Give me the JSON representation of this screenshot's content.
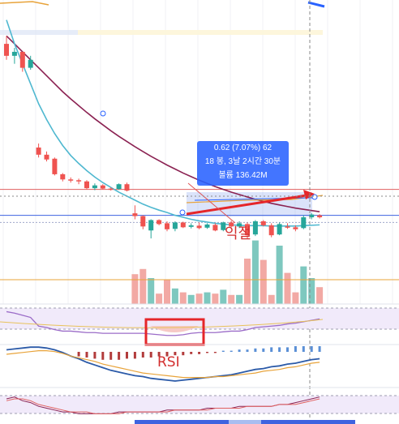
{
  "colors": {
    "up": "#26a69a",
    "down": "#ef5350",
    "up_vol": "#7ec8bf",
    "down_vol": "#f2a9a4",
    "ma_short": "#4fb8d0",
    "ma_long": "#8b2252",
    "ma_mid": "#e8a33a",
    "hline_red": "#e06060",
    "hline_blue": "#3e63e0",
    "accent_blue": "#2962ff",
    "annotation_red": "#d32f2f"
  },
  "measure_tooltip": {
    "line1": "0.62 (7.07%) 62",
    "line2": "18 봉, 3날 2시간 30분",
    "line3": "볼륨 136.42M"
  },
  "annotations": {
    "trend_label": "익절",
    "oscillator_label": "RSI"
  },
  "chart_data": {
    "type": "candlestick",
    "candles": [
      {
        "o": 5.6,
        "h": 5.8,
        "l": 5.2,
        "c": 5.3
      },
      {
        "o": 5.3,
        "h": 5.5,
        "l": 5.1,
        "c": 5.4
      },
      {
        "o": 5.4,
        "h": 5.4,
        "l": 4.9,
        "c": 5.0
      },
      {
        "o": 5.0,
        "h": 5.3,
        "l": 4.95,
        "c": 5.2
      },
      {
        "o": 3.0,
        "h": 3.1,
        "l": 2.75,
        "c": 2.82
      },
      {
        "o": 2.82,
        "h": 2.9,
        "l": 2.65,
        "c": 2.7
      },
      {
        "o": 2.72,
        "h": 2.75,
        "l": 2.3,
        "c": 2.33
      },
      {
        "o": 2.33,
        "h": 2.36,
        "l": 2.15,
        "c": 2.2
      },
      {
        "o": 2.2,
        "h": 2.25,
        "l": 2.12,
        "c": 2.18
      },
      {
        "o": 2.18,
        "h": 2.22,
        "l": 2.08,
        "c": 2.15
      },
      {
        "o": 2.15,
        "h": 2.18,
        "l": 1.95,
        "c": 1.98
      },
      {
        "o": 1.98,
        "h": 2.1,
        "l": 1.93,
        "c": 2.05
      },
      {
        "o": 2.05,
        "h": 2.08,
        "l": 1.95,
        "c": 1.97
      },
      {
        "o": 1.97,
        "h": 2.0,
        "l": 1.92,
        "c": 1.96
      },
      {
        "o": 1.96,
        "h": 2.1,
        "l": 1.94,
        "c": 2.08
      },
      {
        "o": 2.08,
        "h": 2.12,
        "l": 1.9,
        "c": 1.92
      },
      {
        "o": 1.35,
        "h": 1.55,
        "l": 1.2,
        "c": 1.28
      },
      {
        "o": 1.28,
        "h": 1.3,
        "l": 0.95,
        "c": 1.02
      },
      {
        "o": 0.92,
        "h": 1.2,
        "l": 0.72,
        "c": 1.18
      },
      {
        "o": 1.18,
        "h": 1.2,
        "l": 1.05,
        "c": 1.08
      },
      {
        "o": 1.1,
        "h": 1.15,
        "l": 0.9,
        "c": 0.95
      },
      {
        "o": 0.96,
        "h": 1.15,
        "l": 0.9,
        "c": 1.12
      },
      {
        "o": 1.12,
        "h": 1.14,
        "l": 0.98,
        "c": 1.0
      },
      {
        "o": 1.01,
        "h": 1.1,
        "l": 0.97,
        "c": 1.05
      },
      {
        "o": 1.04,
        "h": 1.12,
        "l": 0.95,
        "c": 0.98
      },
      {
        "o": 0.99,
        "h": 1.1,
        "l": 0.96,
        "c": 1.07
      },
      {
        "o": 1.06,
        "h": 1.1,
        "l": 0.9,
        "c": 0.92
      },
      {
        "o": 0.93,
        "h": 1.14,
        "l": 0.9,
        "c": 1.12
      },
      {
        "o": 1.12,
        "h": 1.16,
        "l": 1.0,
        "c": 1.02
      },
      {
        "o": 1.02,
        "h": 1.15,
        "l": 0.98,
        "c": 1.1
      },
      {
        "o": 1.08,
        "h": 1.12,
        "l": 0.72,
        "c": 0.8
      },
      {
        "o": 0.82,
        "h": 1.18,
        "l": 0.78,
        "c": 1.15
      },
      {
        "o": 1.15,
        "h": 1.18,
        "l": 1.02,
        "c": 1.05
      },
      {
        "o": 1.05,
        "h": 1.1,
        "l": 0.75,
        "c": 0.8
      },
      {
        "o": 0.82,
        "h": 1.12,
        "l": 0.8,
        "c": 1.08
      },
      {
        "o": 1.02,
        "h": 1.1,
        "l": 0.96,
        "c": 1.0
      },
      {
        "o": 1.0,
        "h": 1.05,
        "l": 0.9,
        "c": 0.95
      },
      {
        "o": 0.98,
        "h": 1.3,
        "l": 0.95,
        "c": 1.25
      },
      {
        "o": 1.25,
        "h": 1.35,
        "l": 1.2,
        "c": 1.32
      },
      {
        "o": 1.3,
        "h": 1.33,
        "l": 1.22,
        "c": 1.25
      }
    ],
    "volume": [
      0,
      0,
      0,
      0,
      0,
      0,
      0,
      0,
      0,
      0,
      0,
      0,
      0,
      0,
      0,
      0,
      2.3,
      2.7,
      2.0,
      0.8,
      1.9,
      1.2,
      0.9,
      0.7,
      0.8,
      0.9,
      0.8,
      1.1,
      0.7,
      0.7,
      3.5,
      4.9,
      3.4,
      0.7,
      4.5,
      2.4,
      0.9,
      2.9,
      2.0,
      1.3
    ],
    "ma_short": [
      6.2,
      5.6,
      5.1,
      4.6,
      4.1,
      3.7,
      3.35,
      3.05,
      2.8,
      2.6,
      2.42,
      2.26,
      2.12,
      2.0,
      1.88,
      1.78,
      1.68,
      1.58,
      1.5,
      1.43,
      1.37,
      1.3,
      1.25,
      1.2,
      1.16,
      1.13,
      1.1,
      1.08,
      1.06,
      1.05,
      1.04,
      1.04,
      1.04,
      1.03,
      1.03,
      1.03,
      1.03,
      1.04,
      1.05,
      1.06
    ],
    "ma_long": [
      5.8,
      5.6,
      5.4,
      5.2,
      5.0,
      4.8,
      4.6,
      4.4,
      4.22,
      4.05,
      3.88,
      3.72,
      3.57,
      3.42,
      3.28,
      3.15,
      3.02,
      2.9,
      2.78,
      2.67,
      2.56,
      2.46,
      2.36,
      2.27,
      2.18,
      2.1,
      2.02,
      1.95,
      1.88,
      1.82,
      1.76,
      1.7,
      1.65,
      1.6,
      1.56,
      1.52,
      1.48,
      1.45,
      1.42,
      1.39
    ],
    "price_lines": [
      1.95,
      1.3,
      1.12
    ],
    "y_range": [
      0.6,
      6.7
    ],
    "rsi": [
      60,
      58,
      55,
      52,
      40,
      38,
      35,
      33,
      33,
      32,
      31,
      31,
      30,
      30,
      30,
      30,
      30,
      30,
      29,
      28,
      27,
      27,
      28,
      30,
      31,
      31,
      31,
      32,
      33,
      33,
      35,
      38,
      39,
      40,
      41,
      43,
      44,
      46,
      48,
      50
    ],
    "macd": [
      35,
      36,
      37,
      38,
      38,
      37,
      35,
      32,
      28,
      25,
      21,
      18,
      15,
      12,
      10,
      8,
      6,
      5,
      3,
      2,
      1,
      0,
      1,
      2,
      3,
      4,
      5,
      6,
      7,
      9,
      11,
      13,
      14,
      16,
      17,
      19,
      20,
      22,
      24,
      25
    ],
    "macd_signal": [
      30,
      31,
      32,
      33,
      34,
      34,
      33,
      31,
      28,
      26,
      24,
      22,
      19,
      17,
      15,
      13,
      11,
      9,
      8,
      7,
      6,
      5,
      4,
      4,
      4,
      4,
      5,
      5,
      6,
      7,
      8,
      9,
      11,
      12,
      13,
      15,
      16,
      18,
      20,
      21
    ],
    "macd_hist": [
      0,
      0,
      0,
      0,
      0,
      0,
      0,
      0,
      0,
      -4,
      -5,
      -6,
      -7,
      -7,
      -7,
      -6,
      -6,
      -5,
      -5,
      -4,
      -4,
      -3,
      -3,
      -2,
      -2,
      -1,
      -1,
      1,
      1,
      2,
      2,
      3,
      3,
      4,
      4,
      4,
      5,
      5,
      5,
      5
    ],
    "osc_a": [
      10,
      11,
      9,
      8,
      6,
      5,
      4,
      3,
      3,
      2,
      2,
      2,
      2,
      2,
      3,
      3,
      3,
      3,
      3,
      3,
      4,
      4,
      4,
      4,
      4,
      5,
      5,
      5,
      5,
      6,
      6,
      6,
      6,
      6,
      7,
      7,
      8,
      9,
      10,
      11
    ],
    "osc_b": [
      9,
      10,
      10,
      9,
      7,
      6,
      5,
      4,
      3,
      3,
      3,
      2,
      2,
      2,
      2,
      3,
      3,
      3,
      3,
      3,
      3,
      4,
      4,
      4,
      4,
      4,
      5,
      5,
      5,
      5,
      6,
      6,
      6,
      6,
      7,
      7,
      7,
      8,
      9,
      10
    ]
  }
}
